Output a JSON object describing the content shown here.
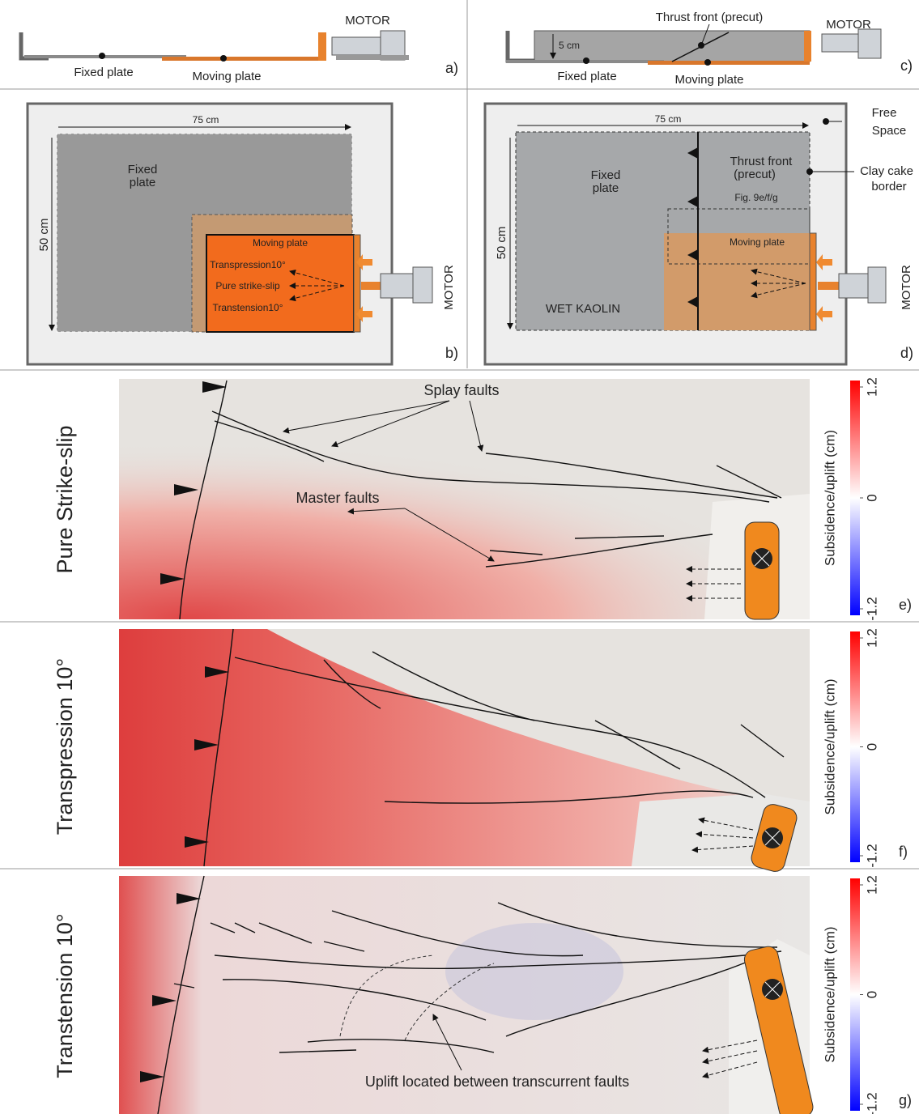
{
  "panels": {
    "a": {
      "label": "a)",
      "fixed_plate": "Fixed plate",
      "moving_plate": "Moving plate",
      "motor": "MOTOR"
    },
    "b": {
      "label": "b)",
      "width": "75 cm",
      "height": "50 cm",
      "fixed_plate": [
        "Fixed",
        "plate"
      ],
      "moving_plate": "Moving  plate",
      "arrows": [
        "Transpression10°",
        "Pure strike-slip",
        "Transtension10°"
      ],
      "motor": "MOTOR"
    },
    "c": {
      "label": "c)",
      "thrust_front": "Thrust front (precut)",
      "thickness": "5 cm",
      "fixed_plate": "Fixed plate",
      "moving_plate": "Moving plate",
      "motor": "MOTOR"
    },
    "d": {
      "label": "d)",
      "width": "75 cm",
      "height": "50 cm",
      "fixed_plate": [
        "Fixed",
        "plate"
      ],
      "thrust_front": [
        "Thrust front",
        "(precut)"
      ],
      "figure_ref": "Fig. 9e/f/g",
      "moving_plate": "Moving  plate",
      "material": "WET KAOLIN",
      "motor": "MOTOR",
      "free_space": [
        "Free",
        "Space"
      ],
      "clay_border": [
        "Clay cake",
        "border"
      ]
    },
    "e": {
      "label": "e)",
      "title": "Pure Strike-slip",
      "annotations": [
        "Splay faults",
        "Master faults"
      ],
      "colorbar": {
        "label": "Subsidence/uplift (cm)",
        "ticks": [
          1.2,
          0,
          -1.2
        ]
      }
    },
    "f": {
      "label": "f)",
      "title": "Transpression 10°",
      "colorbar": {
        "label": "Subsidence/uplift (cm)",
        "ticks": [
          1.2,
          0,
          -1.2
        ]
      }
    },
    "g": {
      "label": "g)",
      "title": "Transtension 10°",
      "annotation": "Uplift located between transcurrent faults",
      "colorbar": {
        "label": "Subsidence/uplift (cm)",
        "ticks": [
          1.2,
          0,
          -1.2
        ]
      }
    }
  }
}
